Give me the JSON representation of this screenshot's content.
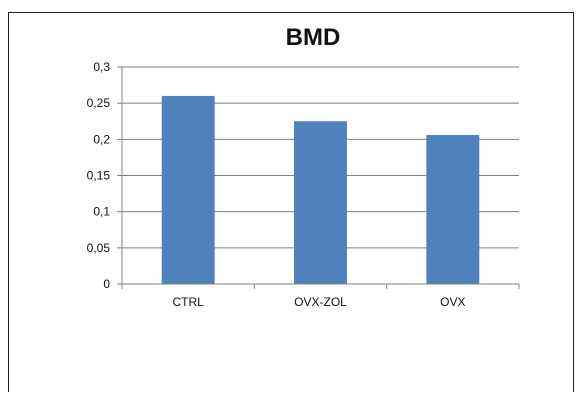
{
  "chart_data": {
    "type": "bar",
    "title": "BMD",
    "categories": [
      "CTRL",
      "OVX-ZOL",
      "OVX"
    ],
    "series": [
      {
        "values": [
          0.26,
          0.225,
          0.206
        ],
        "color": "#4f81bd"
      }
    ],
    "ylim": [
      0,
      0.3
    ],
    "yticks": [
      0,
      0.05,
      0.1,
      0.15,
      0.2,
      0.25,
      0.3
    ],
    "ytick_labels": [
      "0",
      "0,05",
      "0,1",
      "0,15",
      "0,2",
      "0,25",
      "0,3"
    ],
    "xlabel": "",
    "ylabel": "",
    "grid": true,
    "legend": "none",
    "colors": {
      "bar": "#4f81bd",
      "grid": "#7f7f7f",
      "axis": "#7f7f7f"
    }
  }
}
